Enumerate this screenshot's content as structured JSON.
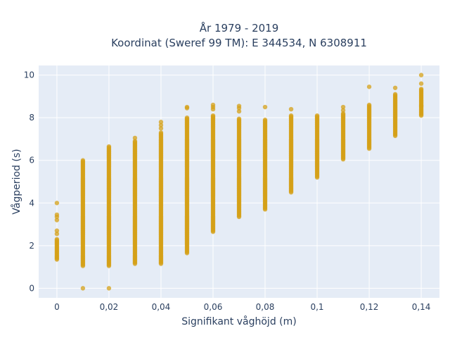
{
  "chart_data": {
    "type": "scatter",
    "title_line1": "År 1979 - 2019",
    "title_line2": "Koordinat (Sweref 99 TM): E 344534, N 6308911",
    "xlabel": "Signifikant våghöjd (m)",
    "ylabel": "Vågperiod (s)",
    "xlim": [
      -0.007,
      0.147
    ],
    "ylim": [
      -0.45,
      10.45
    ],
    "grid": true,
    "color": "#d4a017",
    "x_ticks": [
      {
        "value": 0,
        "label": "0"
      },
      {
        "value": 0.02,
        "label": "0,02"
      },
      {
        "value": 0.04,
        "label": "0,04"
      },
      {
        "value": 0.06,
        "label": "0,06"
      },
      {
        "value": 0.08,
        "label": "0,08"
      },
      {
        "value": 0.1,
        "label": "0,1"
      },
      {
        "value": 0.12,
        "label": "0,12"
      },
      {
        "value": 0.14,
        "label": "0,14"
      }
    ],
    "y_ticks": [
      {
        "value": 0,
        "label": "0"
      },
      {
        "value": 2,
        "label": "2"
      },
      {
        "value": 4,
        "label": "4"
      },
      {
        "value": 6,
        "label": "6"
      },
      {
        "value": 8,
        "label": "8"
      },
      {
        "value": 10,
        "label": "10"
      }
    ],
    "columns": [
      {
        "x": 0,
        "y_min": 1.35,
        "y_max": 2.3,
        "extra_y": [
          2.55,
          2.7,
          3.2,
          3.35,
          3.45,
          4.0
        ]
      },
      {
        "x": 0.01,
        "y_min": 1.05,
        "y_max": 6.0,
        "extra_y": [
          0.0
        ]
      },
      {
        "x": 0.02,
        "y_min": 1.05,
        "y_max": 6.65,
        "extra_y": [
          0.0
        ]
      },
      {
        "x": 0.03,
        "y_min": 1.15,
        "y_max": 6.9,
        "extra_y": [
          7.05
        ]
      },
      {
        "x": 0.04,
        "y_min": 1.15,
        "y_max": 7.3,
        "extra_y": [
          7.5,
          7.65,
          7.8
        ]
      },
      {
        "x": 0.05,
        "y_min": 1.65,
        "y_max": 8.0,
        "extra_y": [
          8.45,
          8.5
        ]
      },
      {
        "x": 0.06,
        "y_min": 2.65,
        "y_max": 8.1,
        "extra_y": [
          8.4,
          8.5,
          8.6
        ]
      },
      {
        "x": 0.07,
        "y_min": 3.35,
        "y_max": 7.95,
        "extra_y": [
          8.3,
          8.45,
          8.55
        ]
      },
      {
        "x": 0.08,
        "y_min": 3.7,
        "y_max": 7.9,
        "extra_y": [
          8.5
        ]
      },
      {
        "x": 0.09,
        "y_min": 4.5,
        "y_max": 8.1,
        "extra_y": [
          8.4
        ]
      },
      {
        "x": 0.1,
        "y_min": 5.2,
        "y_max": 8.1,
        "extra_y": []
      },
      {
        "x": 0.11,
        "y_min": 6.05,
        "y_max": 8.2,
        "extra_y": [
          8.35,
          8.5
        ]
      },
      {
        "x": 0.12,
        "y_min": 6.55,
        "y_max": 8.6,
        "extra_y": [
          9.45
        ]
      },
      {
        "x": 0.13,
        "y_min": 7.15,
        "y_max": 9.1,
        "extra_y": [
          9.4
        ]
      },
      {
        "x": 0.14,
        "y_min": 8.1,
        "y_max": 9.35,
        "extra_y": [
          8.55,
          9.6,
          10.0
        ]
      }
    ]
  }
}
